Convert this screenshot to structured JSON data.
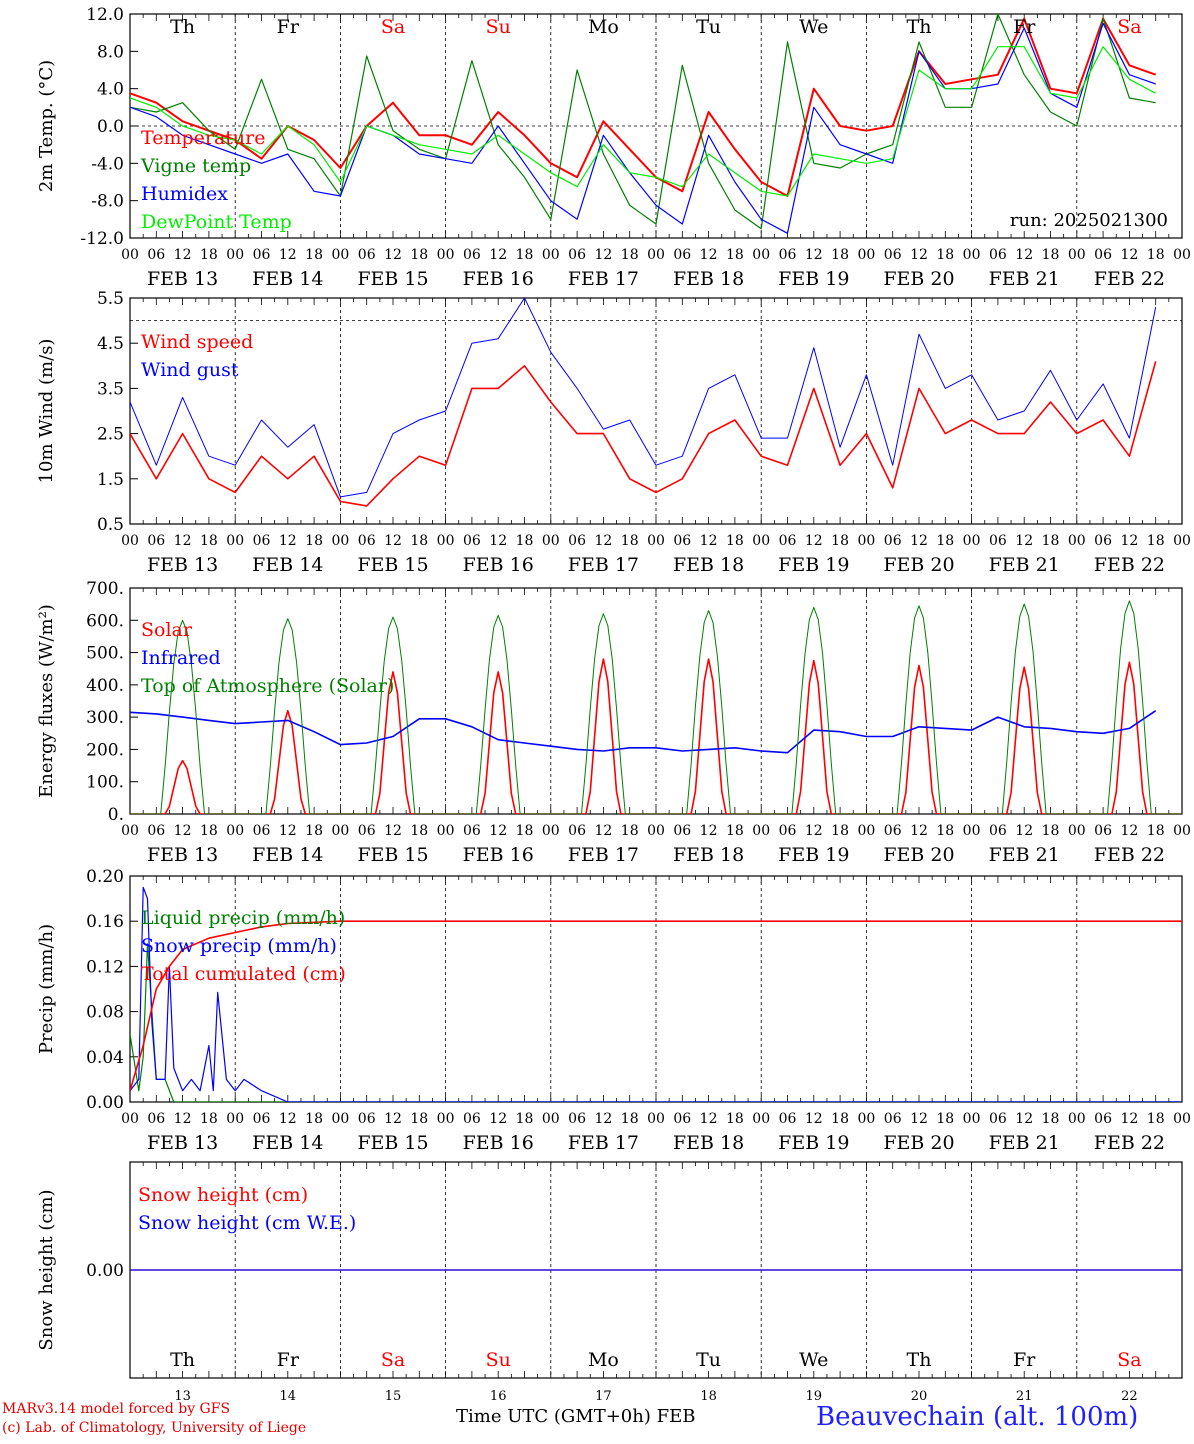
{
  "run_label": "run: 2025021300",
  "colors": {
    "red": "#ff0000",
    "green": "#008000",
    "blue": "#0000ff",
    "lightgreen": "#00ee00",
    "grid": "#000000"
  },
  "weekdays": [
    {
      "label": "Th",
      "color": "#000000"
    },
    {
      "label": "Fr",
      "color": "#000000"
    },
    {
      "label": "Sa",
      "color": "#ff0000"
    },
    {
      "label": "Su",
      "color": "#ff0000"
    },
    {
      "label": "Mo",
      "color": "#000000"
    },
    {
      "label": "Tu",
      "color": "#000000"
    },
    {
      "label": "We",
      "color": "#000000"
    },
    {
      "label": "Th",
      "color": "#000000"
    },
    {
      "label": "Fr",
      "color": "#000000"
    },
    {
      "label": "Sa",
      "color": "#ff0000"
    }
  ],
  "date_labels": [
    "FEB 13",
    "FEB 14",
    "FEB 15",
    "FEB 16",
    "FEB 17",
    "FEB 18",
    "FEB 19",
    "FEB 20",
    "FEB 21",
    "FEB 22"
  ],
  "hour_labels": [
    "00",
    "06",
    "12",
    "18"
  ],
  "day_numbers": [
    "13",
    "14",
    "15",
    "16",
    "17",
    "18",
    "19",
    "20",
    "21",
    "22"
  ],
  "footer": {
    "model": "MARv3.14 model forced by GFS",
    "lab": "(c) Lab. of Climatology, University of Liege",
    "time_axis": "Time UTC (GMT+0h) FEB",
    "station": "Beauvechain (alt. 100m)"
  },
  "chart_data": [
    {
      "type": "line",
      "ylabel": "2m Temp. (°C)",
      "ylim": [
        -12,
        12
      ],
      "yticks": [
        "12.0",
        "8.0",
        "4.0",
        "0.0",
        "-4.0",
        "-8.0",
        "-12.0"
      ],
      "ytick_values": [
        12,
        8,
        4,
        0,
        -4,
        -8,
        -12
      ],
      "dashed_ref": 0,
      "x_unit": "hours since FEB 13 00 UTC",
      "series": [
        {
          "name": "Temperature",
          "color": "#ff0000",
          "width": 2,
          "x": [
            0,
            6,
            12,
            18,
            24,
            30,
            36,
            42,
            48,
            54,
            60,
            66,
            72,
            78,
            84,
            90,
            96,
            102,
            108,
            114,
            120,
            126,
            132,
            138,
            144,
            150,
            156,
            162,
            168,
            174,
            180,
            186,
            192,
            198,
            204,
            210,
            216,
            222,
            228,
            234
          ],
          "y": [
            3.5,
            2.5,
            0.5,
            -0.5,
            -1.5,
            -3.5,
            0,
            -1.5,
            -4.5,
            0,
            2.5,
            -1,
            -1,
            -2,
            1.5,
            -1,
            -4,
            -5.5,
            0.5,
            -2.5,
            -5.5,
            -7,
            1.5,
            -2.5,
            -6,
            -7.5,
            4,
            0,
            -0.5,
            0,
            8,
            4.5,
            5,
            5.5,
            11.5,
            4,
            3.5,
            11.5,
            6.5,
            5.5
          ]
        },
        {
          "name": "Vigne temp",
          "color": "#008000",
          "width": 1.2,
          "x": [
            0,
            6,
            12,
            18,
            24,
            30,
            36,
            42,
            48,
            54,
            60,
            66,
            72,
            78,
            84,
            90,
            96,
            102,
            108,
            114,
            120,
            126,
            132,
            138,
            144,
            150,
            156,
            162,
            168,
            174,
            180,
            186,
            192,
            198,
            204,
            210,
            216,
            222,
            228,
            234
          ],
          "y": [
            2,
            1.5,
            2.5,
            -0.5,
            -2.5,
            5,
            -2.5,
            -3.5,
            -7.5,
            7.5,
            -0.5,
            -2.5,
            -3.5,
            7,
            -2,
            -5.5,
            -10,
            6,
            -3,
            -8.5,
            -10.5,
            6.5,
            -4,
            -9,
            -11,
            9,
            -4,
            -4.5,
            -3,
            -2,
            9,
            2,
            2,
            12,
            5.5,
            1.5,
            0,
            11.5,
            3,
            2.5
          ]
        },
        {
          "name": "Humidex",
          "color": "#0000ff",
          "width": 1.2,
          "x": [
            0,
            6,
            12,
            18,
            24,
            30,
            36,
            42,
            48,
            54,
            60,
            66,
            72,
            78,
            84,
            90,
            96,
            102,
            108,
            114,
            120,
            126,
            132,
            138,
            144,
            150,
            156,
            162,
            168,
            174,
            180,
            186,
            192,
            198,
            204,
            210,
            216,
            222,
            228,
            234
          ],
          "y": [
            2,
            1,
            -1,
            -2,
            -3,
            -4,
            -3,
            -7,
            -7.5,
            0,
            -1,
            -3,
            -3.5,
            -4,
            0,
            -4,
            -8,
            -10,
            -1,
            -5,
            -8.5,
            -10.5,
            -1,
            -6,
            -10,
            -11.5,
            2,
            -2,
            -3,
            -4,
            8,
            4,
            4,
            4.5,
            10.5,
            3.5,
            2,
            11,
            5.5,
            4.5
          ]
        },
        {
          "name": "DewPoint Temp",
          "color": "#00ee00",
          "width": 1.2,
          "x": [
            0,
            6,
            12,
            18,
            24,
            30,
            36,
            42,
            48,
            54,
            60,
            66,
            72,
            78,
            84,
            90,
            96,
            102,
            108,
            114,
            120,
            126,
            132,
            138,
            144,
            150,
            156,
            162,
            168,
            174,
            180,
            186,
            192,
            198,
            204,
            210,
            216,
            222,
            228,
            234
          ],
          "y": [
            3,
            2,
            0,
            -1,
            -1.5,
            -3,
            0,
            -2,
            -6,
            0,
            -1,
            -2,
            -2.5,
            -3,
            -1,
            -3,
            -5,
            -6.5,
            -2,
            -5,
            -5.5,
            -6.5,
            -3,
            -5,
            -7,
            -7.5,
            -3,
            -3.5,
            -4,
            -3.5,
            6,
            4,
            4,
            8.5,
            8.5,
            3.5,
            3,
            8.5,
            5,
            3.5
          ]
        }
      ]
    },
    {
      "type": "line",
      "ylabel": "10m Wind (m/s)",
      "ylim": [
        0.5,
        5.5
      ],
      "yticks": [
        "5.5",
        "4.5",
        "3.5",
        "2.5",
        "1.5",
        "0.5"
      ],
      "ytick_values": [
        5.5,
        4.5,
        3.5,
        2.5,
        1.5,
        0.5
      ],
      "dashed_ref": 5,
      "series": [
        {
          "name": "Wind speed",
          "color": "#ff0000",
          "width": 1.6,
          "x": [
            0,
            6,
            12,
            18,
            24,
            30,
            36,
            42,
            48,
            54,
            60,
            66,
            72,
            78,
            84,
            90,
            96,
            102,
            108,
            114,
            120,
            126,
            132,
            138,
            144,
            150,
            156,
            162,
            168,
            174,
            180,
            186,
            192,
            198,
            204,
            210,
            216,
            222,
            228,
            234
          ],
          "y": [
            2.5,
            1.5,
            2.5,
            1.5,
            1.2,
            2,
            1.5,
            2,
            1,
            0.9,
            1.5,
            2,
            1.8,
            3.5,
            3.5,
            4,
            3.2,
            2.5,
            2.5,
            1.5,
            1.2,
            1.5,
            2.5,
            2.8,
            2,
            1.8,
            3.5,
            1.8,
            2.5,
            1.3,
            3.5,
            2.5,
            2.8,
            2.5,
            2.5,
            3.2,
            2.5,
            2.8,
            2,
            4.1
          ]
        },
        {
          "name": "Wind gust",
          "color": "#0000ff",
          "width": 1,
          "x": [
            0,
            6,
            12,
            18,
            24,
            30,
            36,
            42,
            48,
            54,
            60,
            66,
            72,
            78,
            84,
            90,
            96,
            102,
            108,
            114,
            120,
            126,
            132,
            138,
            144,
            150,
            156,
            162,
            168,
            174,
            180,
            186,
            192,
            198,
            204,
            210,
            216,
            222,
            228,
            234
          ],
          "y": [
            3.2,
            1.8,
            3.3,
            2,
            1.8,
            2.8,
            2.2,
            2.7,
            1.1,
            1.2,
            2.5,
            2.8,
            3,
            4.5,
            4.6,
            5.5,
            4.3,
            3.5,
            2.6,
            2.8,
            1.8,
            2,
            3.5,
            3.8,
            2.4,
            2.4,
            4.4,
            2.2,
            3.8,
            1.8,
            4.7,
            3.5,
            3.8,
            2.8,
            3,
            3.9,
            2.8,
            3.6,
            2.4,
            5.3
          ]
        }
      ]
    },
    {
      "type": "line",
      "ylabel": "Energy fluxes (W/m²)",
      "ylim": [
        0,
        700
      ],
      "yticks": [
        "700.",
        "600.",
        "500.",
        "400.",
        "300.",
        "200.",
        "100.",
        "0."
      ],
      "ytick_values": [
        700,
        600,
        500,
        400,
        300,
        200,
        100,
        0
      ],
      "series": [
        {
          "name": "Solar",
          "color": "#ff0000",
          "width": 1.6,
          "daily_peaks": [
            165,
            320,
            440,
            440,
            480,
            480,
            475,
            460,
            455,
            470
          ]
        },
        {
          "name": "Infrared",
          "color": "#0000ff",
          "width": 1.6,
          "x": [
            0,
            6,
            12,
            18,
            24,
            30,
            36,
            42,
            48,
            54,
            60,
            66,
            72,
            78,
            84,
            90,
            96,
            102,
            108,
            114,
            120,
            126,
            132,
            138,
            144,
            150,
            156,
            162,
            168,
            174,
            180,
            186,
            192,
            198,
            204,
            210,
            216,
            222,
            228,
            234
          ],
          "y": [
            315,
            310,
            300,
            290,
            280,
            285,
            290,
            255,
            215,
            220,
            240,
            295,
            295,
            270,
            230,
            220,
            210,
            200,
            195,
            205,
            205,
            195,
            200,
            205,
            195,
            190,
            260,
            255,
            240,
            240,
            270,
            265,
            260,
            300,
            270,
            265,
            255,
            250,
            265,
            320
          ]
        },
        {
          "name": "Top of Atmosphere (Solar)",
          "color": "#008000",
          "width": 1,
          "daily_peaks": [
            600,
            605,
            610,
            615,
            620,
            630,
            640,
            645,
            650,
            660
          ]
        }
      ]
    },
    {
      "type": "line",
      "ylabel": "Precip (mm/h)",
      "ylim": [
        0,
        0.2
      ],
      "yticks": [
        "0.20",
        "0.16",
        "0.12",
        "0.08",
        "0.04",
        "0.00"
      ],
      "ytick_values": [
        0.2,
        0.16,
        0.12,
        0.08,
        0.04,
        0
      ],
      "series": [
        {
          "name": "Liquid precip (mm/h)",
          "color": "#008000",
          "width": 1.2,
          "x": [
            0,
            2,
            3,
            4,
            6,
            8,
            10,
            14,
            18,
            24,
            240
          ],
          "y": [
            0.06,
            0.01,
            0.04,
            0.14,
            0.02,
            0.02,
            0,
            0,
            0,
            0,
            0
          ]
        },
        {
          "name": "Snow precip (mm/h)",
          "color": "#0000ff",
          "width": 1.2,
          "x": [
            0,
            2,
            3,
            4,
            5,
            6,
            8,
            9,
            10,
            12,
            14,
            16,
            18,
            19,
            20,
            22,
            24,
            26,
            30,
            36,
            42,
            48,
            240
          ],
          "y": [
            0.01,
            0.02,
            0.19,
            0.18,
            0.07,
            0.02,
            0.02,
            0.12,
            0.03,
            0.01,
            0.02,
            0.01,
            0.05,
            0.01,
            0.097,
            0.02,
            0.01,
            0.02,
            0.01,
            0,
            0,
            0,
            0
          ]
        },
        {
          "name": "Total cumulated (cm)",
          "color": "#ff0000",
          "width": 1.6,
          "x": [
            0,
            3,
            6,
            9,
            12,
            18,
            24,
            30,
            36,
            48,
            60,
            72,
            240
          ],
          "y": [
            0.01,
            0.05,
            0.1,
            0.12,
            0.135,
            0.145,
            0.15,
            0.155,
            0.158,
            0.16,
            0.16,
            0.16,
            0.16
          ]
        }
      ]
    },
    {
      "type": "line",
      "ylabel": "Snow height (cm)",
      "ylim": [
        -1,
        1
      ],
      "yticks": [
        "0.00"
      ],
      "ytick_values": [
        0
      ],
      "series": [
        {
          "name": "Snow height (cm)",
          "color": "#ff0000",
          "width": 1.2,
          "x": [
            0,
            240
          ],
          "y": [
            0,
            0
          ]
        },
        {
          "name": "Snow height (cm W.E.)",
          "color": "#0000ff",
          "width": 1.2,
          "x": [
            0,
            240
          ],
          "y": [
            0,
            0
          ]
        }
      ]
    }
  ]
}
